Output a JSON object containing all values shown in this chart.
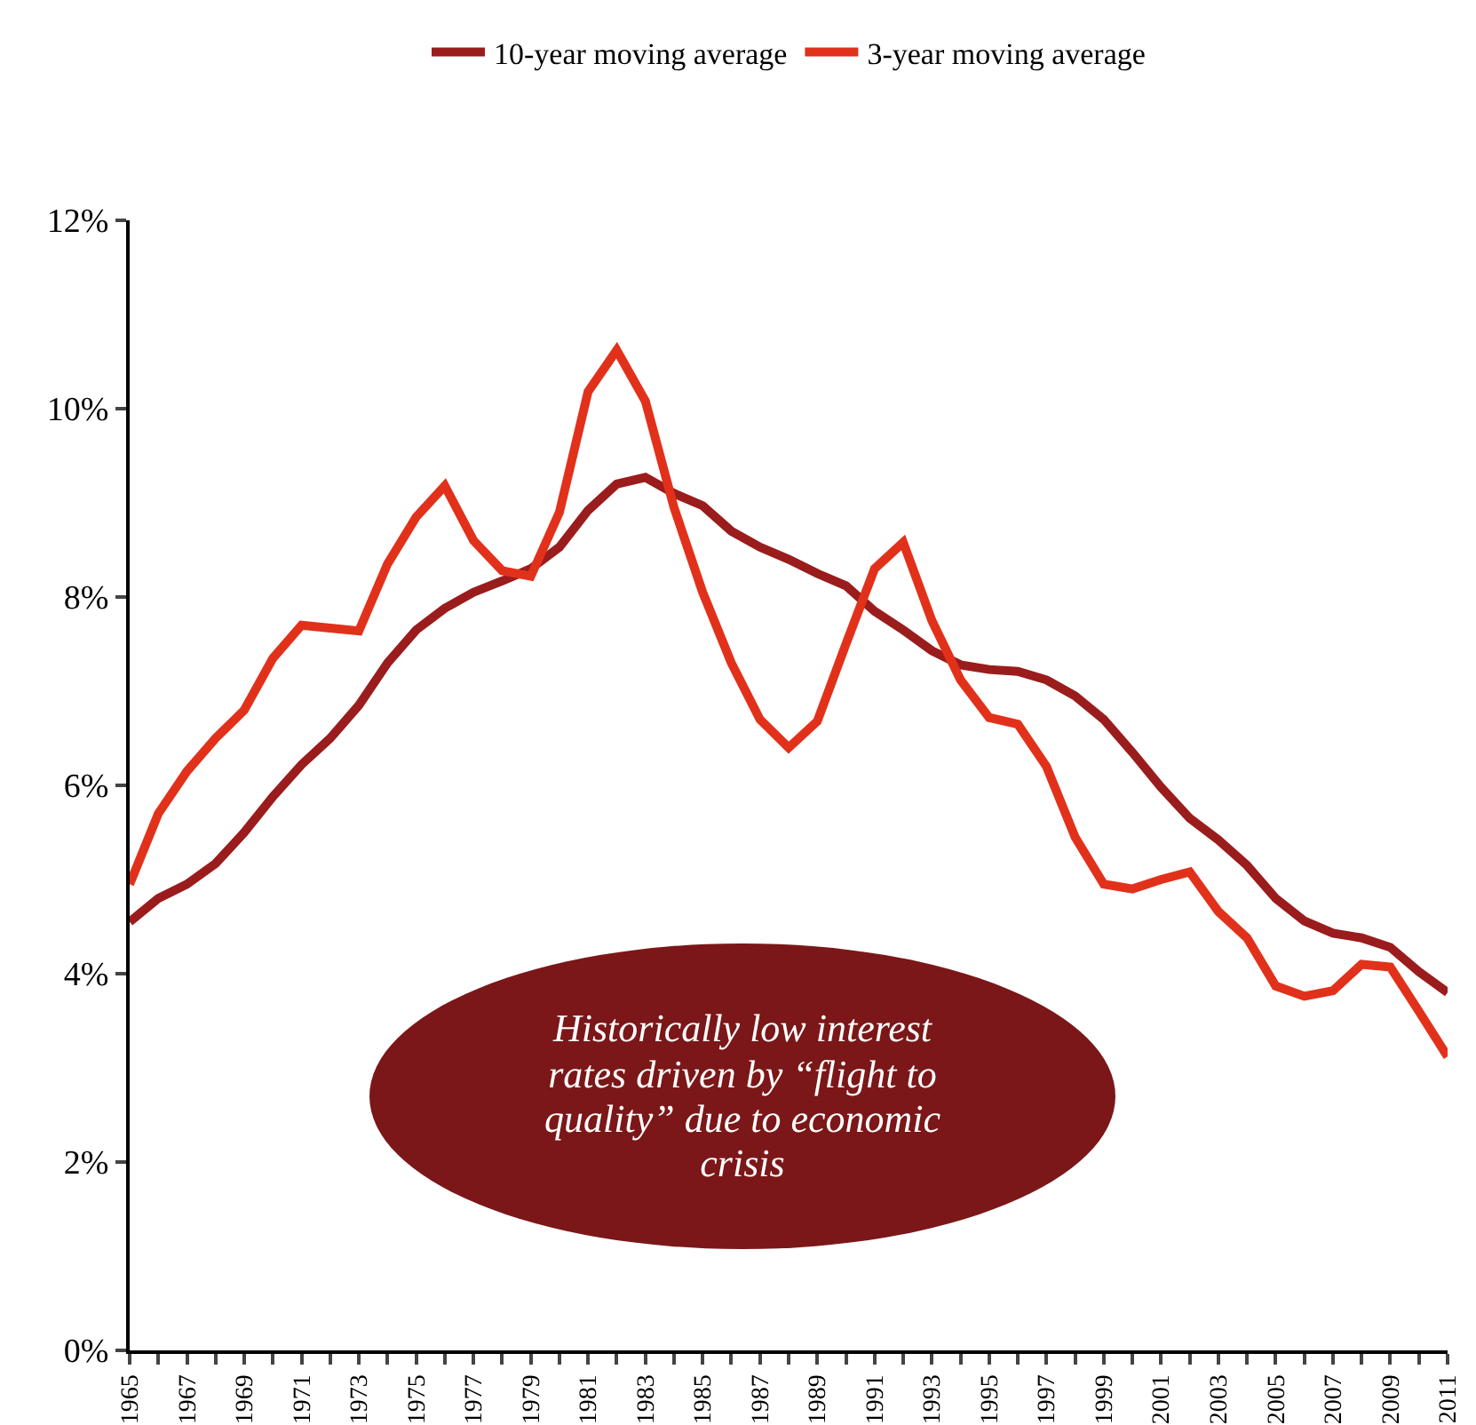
{
  "chart_data": {
    "type": "line",
    "x": [
      1965,
      1966,
      1967,
      1968,
      1969,
      1970,
      1971,
      1972,
      1973,
      1974,
      1975,
      1976,
      1977,
      1978,
      1979,
      1980,
      1981,
      1982,
      1983,
      1984,
      1985,
      1986,
      1987,
      1988,
      1989,
      1990,
      1991,
      1992,
      1993,
      1994,
      1995,
      1996,
      1997,
      1998,
      1999,
      2000,
      2001,
      2002,
      2003,
      2004,
      2005,
      2006,
      2007,
      2008,
      2009,
      2010,
      2011
    ],
    "series": [
      {
        "name": "10-year moving average",
        "color": "#9b1c1c",
        "values": [
          4.55,
          4.8,
          4.95,
          5.17,
          5.5,
          5.88,
          6.22,
          6.5,
          6.85,
          7.3,
          7.65,
          7.88,
          8.05,
          8.17,
          8.3,
          8.53,
          8.92,
          9.2,
          9.27,
          9.1,
          8.97,
          8.7,
          8.53,
          8.4,
          8.25,
          8.12,
          7.85,
          7.65,
          7.43,
          7.28,
          7.23,
          7.21,
          7.12,
          6.95,
          6.7,
          6.35,
          5.98,
          5.65,
          5.42,
          5.15,
          4.8,
          4.56,
          4.43,
          4.38,
          4.28,
          4.02,
          3.8
        ]
      },
      {
        "name": "3-year moving average",
        "color": "#e2311b",
        "values": [
          4.95,
          5.7,
          6.15,
          6.5,
          6.8,
          7.35,
          7.7,
          7.67,
          7.64,
          8.35,
          8.85,
          9.18,
          8.6,
          8.28,
          8.22,
          8.9,
          10.18,
          10.62,
          10.08,
          8.95,
          8.05,
          7.3,
          6.7,
          6.4,
          6.68,
          7.5,
          8.3,
          8.58,
          7.75,
          7.12,
          6.72,
          6.65,
          6.2,
          5.45,
          4.95,
          4.9,
          5.0,
          5.08,
          4.66,
          4.38,
          3.87,
          3.76,
          3.82,
          4.1,
          4.07,
          3.6,
          3.12
        ]
      }
    ],
    "xlim": [
      1965,
      2011
    ],
    "xticks": [
      {
        "value": 1965,
        "label": "1965"
      },
      {
        "value": 1966,
        "label": null
      },
      {
        "value": 1967,
        "label": "1967"
      },
      {
        "value": 1968,
        "label": null
      },
      {
        "value": 1969,
        "label": "1969"
      },
      {
        "value": 1970,
        "label": null
      },
      {
        "value": 1971,
        "label": "1971"
      },
      {
        "value": 1972,
        "label": null
      },
      {
        "value": 1973,
        "label": "1973"
      },
      {
        "value": 1974,
        "label": null
      },
      {
        "value": 1975,
        "label": "1975"
      },
      {
        "value": 1976,
        "label": null
      },
      {
        "value": 1977,
        "label": "1977"
      },
      {
        "value": 1978,
        "label": null
      },
      {
        "value": 1979,
        "label": "1979"
      },
      {
        "value": 1980,
        "label": null
      },
      {
        "value": 1981,
        "label": "1981"
      },
      {
        "value": 1982,
        "label": null
      },
      {
        "value": 1983,
        "label": "1983"
      },
      {
        "value": 1984,
        "label": null
      },
      {
        "value": 1985,
        "label": "1985"
      },
      {
        "value": 1986,
        "label": null
      },
      {
        "value": 1987,
        "label": "1987"
      },
      {
        "value": 1988,
        "label": null
      },
      {
        "value": 1989,
        "label": "1989"
      },
      {
        "value": 1990,
        "label": null
      },
      {
        "value": 1991,
        "label": "1991"
      },
      {
        "value": 1992,
        "label": null
      },
      {
        "value": 1993,
        "label": "1993"
      },
      {
        "value": 1994,
        "label": null
      },
      {
        "value": 1995,
        "label": "1995"
      },
      {
        "value": 1996,
        "label": null
      },
      {
        "value": 1997,
        "label": "1997"
      },
      {
        "value": 1998,
        "label": null
      },
      {
        "value": 1999,
        "label": "1999"
      },
      {
        "value": 2000,
        "label": null
      },
      {
        "value": 2001,
        "label": "2001"
      },
      {
        "value": 2002,
        "label": null
      },
      {
        "value": 2003,
        "label": "2003"
      },
      {
        "value": 2004,
        "label": null
      },
      {
        "value": 2005,
        "label": "2005"
      },
      {
        "value": 2006,
        "label": null
      },
      {
        "value": 2007,
        "label": "2007"
      },
      {
        "value": 2008,
        "label": null
      },
      {
        "value": 2009,
        "label": "2009"
      },
      {
        "value": 2010,
        "label": null
      },
      {
        "value": 2011,
        "label": "2011"
      }
    ],
    "ylim": [
      0,
      12
    ],
    "yticks": [
      {
        "value": 0,
        "label": "0%"
      },
      {
        "value": 2,
        "label": "2%"
      },
      {
        "value": 4,
        "label": "4%"
      },
      {
        "value": 6,
        "label": "6%"
      },
      {
        "value": 8,
        "label": "8%"
      },
      {
        "value": 10,
        "label": "10%"
      },
      {
        "value": 12,
        "label": "12%"
      }
    ],
    "annotations": [
      "Historically low interest rates driven by “flight to quality” due to economic crisis"
    ],
    "legend": "top",
    "grid": false,
    "marker": "none",
    "line_style": "solid"
  }
}
